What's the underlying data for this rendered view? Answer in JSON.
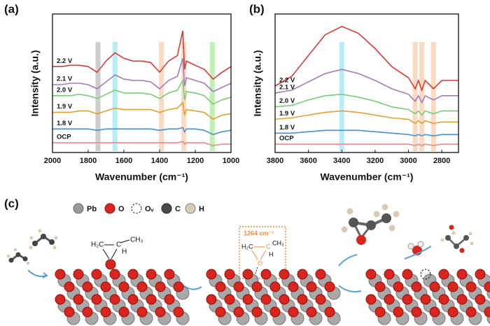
{
  "chart_data": [
    {
      "type": "line",
      "panel_label": "(a)",
      "xlabel": "Wavenumber (cm⁻¹)",
      "ylabel": "Intensity (a.u.)",
      "x": [
        2000,
        1950,
        1900,
        1850,
        1800,
        1750,
        1700,
        1650,
        1600,
        1550,
        1500,
        1450,
        1400,
        1350,
        1300,
        1270,
        1260,
        1250,
        1200,
        1150,
        1100,
        1050,
        1000
      ],
      "xlim": [
        2000,
        1000
      ],
      "xticks": [
        2000,
        1800,
        1600,
        1400,
        1200,
        1000
      ],
      "ylim": [
        0,
        100
      ],
      "series": [
        {
          "name": "2.2 V",
          "color": "#d63c36",
          "values": [
            62,
            62,
            63,
            63,
            62,
            58,
            66,
            72,
            68,
            66,
            66,
            65,
            58,
            66,
            70,
            88,
            60,
            66,
            63,
            60,
            53,
            58,
            62
          ]
        },
        {
          "name": "2.1 V",
          "color": "#a57ab8",
          "values": [
            49,
            49,
            50,
            50,
            49,
            46,
            51,
            56,
            53,
            52,
            52,
            51,
            46,
            52,
            55,
            68,
            48,
            54,
            52,
            50,
            44,
            47,
            50
          ]
        },
        {
          "name": "2.0 V",
          "color": "#7ccb78",
          "values": [
            41,
            41,
            41,
            42,
            41,
            39,
            42,
            45,
            43,
            43,
            43,
            42,
            39,
            43,
            45,
            52,
            38,
            44,
            43,
            41,
            35,
            38,
            40
          ]
        },
        {
          "name": "1.9 V",
          "color": "#e3a02f",
          "values": [
            29,
            29,
            29,
            30,
            30,
            28,
            30,
            32,
            31,
            31,
            31,
            31,
            29,
            31,
            32,
            36,
            27,
            31,
            30,
            29,
            24,
            27,
            28
          ]
        },
        {
          "name": "1.8 V",
          "color": "#4a8fd0",
          "values": [
            17,
            17,
            17,
            17,
            17,
            16,
            17,
            17,
            17,
            17,
            17,
            17,
            16,
            17,
            17,
            18,
            15,
            17,
            17,
            16,
            13,
            15,
            16
          ]
        },
        {
          "name": "OCP",
          "color": "#ea8a8a",
          "values": [
            7,
            7,
            7,
            7,
            7,
            7,
            7,
            7,
            7,
            7,
            7,
            7,
            7,
            7,
            7,
            8,
            6,
            7,
            7,
            7,
            5,
            6,
            6
          ]
        }
      ],
      "highlights": [
        {
          "x": 1745,
          "color": "#bdbdbd"
        },
        {
          "x": 1650,
          "color": "#9fe8f2"
        },
        {
          "x": 1390,
          "color": "#f8cfae"
        },
        {
          "x": 1264,
          "color": "#f8cfae"
        },
        {
          "x": 1105,
          "color": "#a8ec98"
        }
      ]
    },
    {
      "type": "line",
      "panel_label": "(b)",
      "xlabel": "Wavenumber (cm⁻¹)",
      "ylabel": "Intensity (a.u.)",
      "x": [
        3800,
        3700,
        3600,
        3500,
        3400,
        3300,
        3200,
        3100,
        3000,
        2960,
        2940,
        2920,
        2900,
        2850,
        2800,
        2700
      ],
      "xlim": [
        3800,
        2700
      ],
      "xticks": [
        3800,
        3600,
        3400,
        3200,
        3000,
        2800
      ],
      "ylim": [
        0,
        100
      ],
      "series": [
        {
          "name": "2.2 V",
          "color": "#d63c36",
          "values": [
            48,
            55,
            70,
            85,
            91,
            86,
            75,
            62,
            54,
            46,
            52,
            45,
            52,
            46,
            52,
            52
          ]
        },
        {
          "name": "2.1 V",
          "color": "#a57ab8",
          "values": [
            43,
            45,
            51,
            57,
            60,
            57,
            52,
            46,
            42,
            37,
            41,
            36,
            41,
            38,
            41,
            41
          ]
        },
        {
          "name": "2.0 V",
          "color": "#7ccb78",
          "values": [
            33,
            34,
            38,
            41,
            42,
            40,
            37,
            33,
            31,
            28,
            30,
            27,
            30,
            28,
            30,
            30
          ]
        },
        {
          "name": "1.9 V",
          "color": "#e3a02f",
          "values": [
            24,
            25,
            27,
            29,
            30,
            29,
            27,
            25,
            24,
            21,
            23,
            21,
            23,
            21,
            22,
            22
          ]
        },
        {
          "name": "1.8 V",
          "color": "#4a8fd0",
          "values": [
            14,
            14,
            15,
            16,
            16,
            16,
            15,
            14,
            13,
            12,
            13,
            12,
            13,
            12,
            13,
            13
          ]
        },
        {
          "name": "OCP",
          "color": "#ea8a8a",
          "values": [
            6,
            6,
            6,
            6,
            6,
            6,
            6,
            6,
            6,
            5,
            6,
            5,
            6,
            5,
            6,
            6
          ]
        }
      ],
      "highlights": [
        {
          "x": 3400,
          "color": "#9fe8f2"
        },
        {
          "x": 2960,
          "color": "#f8cfae"
        },
        {
          "x": 2920,
          "color": "#f8cfae"
        },
        {
          "x": 2850,
          "color": "#f8cfae"
        }
      ]
    }
  ],
  "schematic": {
    "panel_label": "(c)",
    "legend": [
      "Pb",
      "O",
      "Oᵥ",
      "C",
      "H"
    ],
    "molecule_left": {
      "ch2": "H₂C",
      "ch": "C",
      "ch3": "CH₃",
      "h": "H"
    },
    "molecule_mid": {
      "band": "1264 cm⁻¹",
      "ch2": "H₂C",
      "ch": "C",
      "ch3": "CH₃",
      "h": "H",
      "o": "O"
    }
  }
}
